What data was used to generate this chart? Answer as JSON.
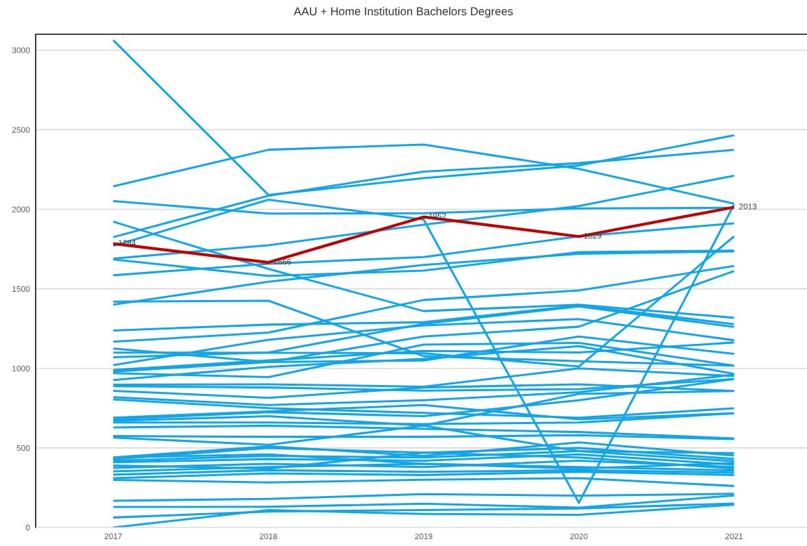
{
  "chart_data": {
    "type": "line",
    "title": "AAU + Home Institution Bachelors Degrees",
    "categories": [
      "2017",
      "2018",
      "2019",
      "2020",
      "2021"
    ],
    "ylim": [
      0,
      3100
    ],
    "yticks": [
      0,
      500,
      1000,
      1500,
      2000,
      2500,
      3000
    ],
    "grid": "y",
    "series": [
      {
        "color": "#12a5e8",
        "values": [
          3063,
          2090,
          2196,
          2275,
          2465
        ]
      },
      {
        "color": "#12a5e8",
        "values": [
          2144,
          2374,
          2407,
          2254,
          2035
        ]
      },
      {
        "color": "#12a5e8",
        "values": [
          1825,
          2085,
          2237,
          2290,
          2373
        ]
      },
      {
        "color": "#12a5e8",
        "values": [
          2052,
          1973,
          1975,
          2005,
          2010
        ]
      },
      {
        "color": "#12a5e8",
        "values": [
          1770,
          2060,
          1935,
          155,
          2030
        ]
      },
      {
        "color": "#12a5e8",
        "values": [
          1690,
          1774,
          1903,
          2020,
          2211
        ]
      },
      {
        "color": "#12a5e8",
        "values": [
          1585,
          1658,
          1700,
          1830,
          1912
        ]
      },
      {
        "color": "#12a5e8",
        "values": [
          1685,
          1581,
          1615,
          1731,
          1740
        ]
      },
      {
        "color": "#12a5e8",
        "values": [
          1922,
          1625,
          1360,
          1400,
          1318
        ]
      },
      {
        "color": "#12a5e8",
        "values": [
          1420,
          1425,
          1077,
          1045,
          1017
        ]
      },
      {
        "color": "#12a5e8",
        "values": [
          1400,
          1545,
          1650,
          1720,
          1735
        ]
      },
      {
        "color": "#12a5e8",
        "values": [
          1238,
          1275,
          1290,
          1395,
          1278
        ]
      },
      {
        "color": "#12a5e8",
        "values": [
          1168,
          1225,
          1430,
          1490,
          1644
        ]
      },
      {
        "color": "#12a5e8",
        "values": [
          1125,
          1040,
          1200,
          1262,
          1612
        ]
      },
      {
        "color": "#12a5e8",
        "values": [
          1099,
          1098,
          1095,
          1012,
          1830
        ]
      },
      {
        "color": "#12a5e8",
        "values": [
          1070,
          1100,
          1280,
          1390,
          1260
        ]
      },
      {
        "color": "#12a5e8",
        "values": [
          1020,
          1180,
          1270,
          1310,
          1177
        ]
      },
      {
        "color": "#12a5e8",
        "values": [
          990,
          1050,
          1110,
          1100,
          1163
        ]
      },
      {
        "color": "#12a5e8",
        "values": [
          980,
          1040,
          1050,
          1200,
          1091
        ]
      },
      {
        "color": "#12a5e8",
        "values": [
          970,
          945,
          1150,
          1160,
          1017
        ]
      },
      {
        "color": "#12a5e8",
        "values": [
          927,
          1010,
          1060,
          1140,
          966
        ]
      },
      {
        "color": "#12a5e8",
        "values": [
          898,
          900,
          885,
          1000,
          952
        ]
      },
      {
        "color": "#12a5e8",
        "values": [
          888,
          880,
          860,
          870,
          933
        ]
      },
      {
        "color": "#12a5e8",
        "values": [
          859,
          815,
          880,
          900,
          858
        ]
      },
      {
        "color": "#12a5e8",
        "values": [
          819,
          770,
          800,
          850,
          960
        ]
      },
      {
        "color": "#12a5e8",
        "values": [
          805,
          750,
          720,
          690,
          749
        ]
      },
      {
        "color": "#12a5e8",
        "values": [
          690,
          730,
          770,
          680,
          718
        ]
      },
      {
        "color": "#12a5e8",
        "values": [
          680,
          725,
          700,
          800,
          933
        ]
      },
      {
        "color": "#12a5e8",
        "values": [
          670,
          700,
          640,
          840,
          858
        ]
      },
      {
        "color": "#12a5e8",
        "values": [
          660,
          660,
          650,
          660,
          718
        ]
      },
      {
        "color": "#12a5e8",
        "values": [
          629,
          640,
          620,
          600,
          560
        ]
      },
      {
        "color": "#12a5e8",
        "values": [
          575,
          570,
          570,
          580,
          555
        ]
      },
      {
        "color": "#12a5e8",
        "values": [
          565,
          520,
          640,
          480,
          467
        ]
      },
      {
        "color": "#12a5e8",
        "values": [
          440,
          510,
          450,
          535,
          452
        ]
      },
      {
        "color": "#12a5e8",
        "values": [
          430,
          500,
          470,
          500,
          431
        ]
      },
      {
        "color": "#12a5e8",
        "values": [
          420,
          450,
          440,
          480,
          416
        ]
      },
      {
        "color": "#12a5e8",
        "values": [
          410,
          430,
          420,
          460,
          395
        ]
      },
      {
        "color": "#12a5e8",
        "values": [
          440,
          460,
          400,
          370,
          405
        ]
      },
      {
        "color": "#12a5e8",
        "values": [
          390,
          370,
          470,
          440,
          370
        ]
      },
      {
        "color": "#12a5e8",
        "values": [
          375,
          400,
          380,
          420,
          380
        ]
      },
      {
        "color": "#12a5e8",
        "values": [
          353,
          380,
          400,
          380,
          359
        ]
      },
      {
        "color": "#12a5e8",
        "values": [
          332,
          360,
          350,
          360,
          345
        ]
      },
      {
        "color": "#12a5e8",
        "values": [
          310,
          340,
          330,
          350,
          330
        ]
      },
      {
        "color": "#12a5e8",
        "values": [
          299,
          283,
          300,
          310,
          261
        ]
      },
      {
        "color": "#12a5e8",
        "values": [
          168,
          180,
          210,
          200,
          212
        ]
      },
      {
        "color": "#12a5e8",
        "values": [
          129,
          130,
          150,
          125,
          201
        ]
      },
      {
        "color": "#12a5e8",
        "values": [
          63,
          100,
          110,
          120,
          151
        ]
      },
      {
        "color": "#12a5e8",
        "values": [
          0,
          110,
          85,
          80,
          143
        ]
      },
      {
        "color": "#c00000",
        "values": [
          1784,
          1666,
          1952,
          1829,
          2013
        ],
        "value_labels": [
          "1784",
          "1666",
          "1952",
          "1829",
          "2013"
        ]
      }
    ]
  }
}
